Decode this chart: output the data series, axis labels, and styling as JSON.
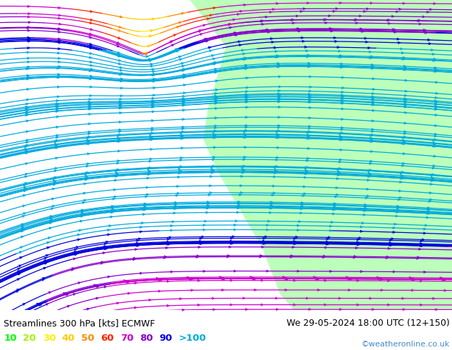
{
  "title_left": "Streamlines 300 hPa [kts] ECMWF",
  "title_right": "We 29-05-2024 18:00 UTC (12+150)",
  "watermark": "©weatheronline.co.uk",
  "legend_values": [
    "10",
    "20",
    "30",
    "40",
    "50",
    "60",
    "70",
    "80",
    "90",
    ">100"
  ],
  "legend_colors": [
    "#00ff00",
    "#aaee00",
    "#ffee00",
    "#ffcc00",
    "#ff8800",
    "#ff2200",
    "#cc00cc",
    "#8800cc",
    "#0000dd",
    "#00aadd"
  ],
  "bg_color": "#d0d0d0",
  "land_color": "#bbffbb",
  "title_fontsize": 9,
  "legend_fontsize": 9,
  "watermark_color": "#4488cc",
  "speed_thresholds": [
    10,
    20,
    30,
    40,
    50,
    60,
    70,
    80,
    90,
    100
  ],
  "speed_colors": [
    "#00ff00",
    "#aaee00",
    "#ffee00",
    "#ffcc00",
    "#ff8800",
    "#ff2200",
    "#cc00cc",
    "#8800cc",
    "#0000dd",
    "#00aadd"
  ]
}
